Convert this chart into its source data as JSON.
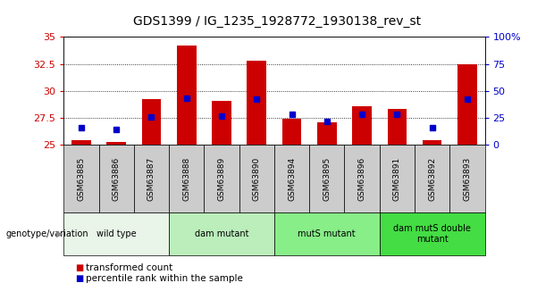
{
  "title": "GDS1399 / IG_1235_1928772_1930138_rev_st",
  "samples": [
    "GSM63885",
    "GSM63886",
    "GSM63887",
    "GSM63888",
    "GSM63889",
    "GSM63890",
    "GSM63894",
    "GSM63895",
    "GSM63896",
    "GSM63891",
    "GSM63892",
    "GSM63893"
  ],
  "transformed_counts": [
    25.4,
    25.3,
    29.2,
    34.2,
    29.1,
    32.8,
    27.4,
    27.1,
    28.6,
    28.3,
    25.4,
    32.5
  ],
  "percentile_ranks": [
    16,
    14,
    26,
    43,
    27,
    42,
    28,
    22,
    28,
    28,
    16,
    42
  ],
  "bar_color": "#cc0000",
  "dot_color": "#0000cc",
  "y_min": 25,
  "y_max": 35,
  "y_ticks": [
    25,
    27.5,
    30,
    32.5,
    35
  ],
  "y_tick_labels": [
    "25",
    "27.5",
    "30",
    "32.5",
    "35"
  ],
  "y2_ticks": [
    0,
    25,
    50,
    75,
    100
  ],
  "y2_tick_labels": [
    "0",
    "25",
    "50",
    "75",
    "100%"
  ],
  "groups": [
    {
      "label": "wild type",
      "start": 0,
      "end": 3,
      "color": "#e8f5e8"
    },
    {
      "label": "dam mutant",
      "start": 3,
      "end": 6,
      "color": "#bbeebb"
    },
    {
      "label": "mutS mutant",
      "start": 6,
      "end": 9,
      "color": "#88ee88"
    },
    {
      "label": "dam mutS double\nmutant",
      "start": 9,
      "end": 12,
      "color": "#44dd44"
    }
  ],
  "xlabel_bar_bg": "#cccccc",
  "genotype_label": "genotype/variation",
  "legend_items": [
    "transformed count",
    "percentile rank within the sample"
  ],
  "title_fontsize": 10,
  "tick_color_left": "#cc0000",
  "tick_color_right": "#0000cc"
}
